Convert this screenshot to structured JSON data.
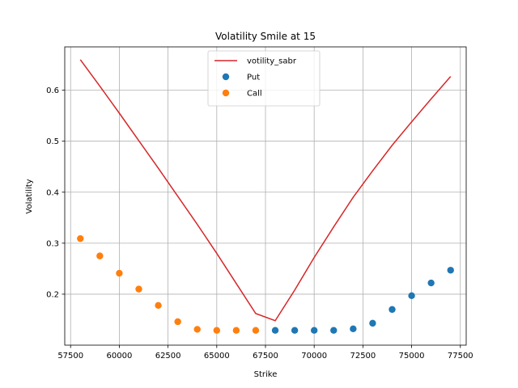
{
  "chart_data": {
    "type": "line",
    "title": "Volatility Smile at 15",
    "xlabel": "Strike",
    "ylabel": "Volatility",
    "xlim": [
      57200,
      77800
    ],
    "ylim": [
      0.1,
      0.685
    ],
    "xticks": [
      57500,
      60000,
      62500,
      65000,
      67500,
      70000,
      72500,
      75000,
      77500
    ],
    "yticks": [
      0.2,
      0.3,
      0.4,
      0.5,
      0.6
    ],
    "grid": true,
    "legend_placement": "upper-center",
    "series": [
      {
        "name": "votility_sabr",
        "kind": "line",
        "color": "#d62728",
        "x": [
          58000,
          59000,
          60000,
          61000,
          62000,
          63000,
          64000,
          65000,
          66000,
          67000,
          68000,
          69000,
          70000,
          71000,
          72000,
          73000,
          74000,
          75000,
          76000,
          77000
        ],
        "y": [
          0.66,
          0.608,
          0.555,
          0.501,
          0.447,
          0.392,
          0.337,
          0.28,
          0.221,
          0.162,
          0.148,
          0.208,
          0.272,
          0.332,
          0.39,
          0.442,
          0.492,
          0.538,
          0.583,
          0.627
        ]
      },
      {
        "name": "Put",
        "kind": "scatter",
        "color": "#1f77b4",
        "x": [
          68000,
          69000,
          70000,
          71000,
          72000,
          73000,
          74000,
          75000,
          76000,
          77000
        ],
        "y": [
          0.129,
          0.129,
          0.129,
          0.129,
          0.132,
          0.143,
          0.17,
          0.197,
          0.222,
          0.247
        ]
      },
      {
        "name": "Call",
        "kind": "scatter",
        "color": "#ff7f0e",
        "x": [
          58000,
          59000,
          60000,
          61000,
          62000,
          63000,
          64000,
          65000,
          66000,
          67000
        ],
        "y": [
          0.309,
          0.275,
          0.241,
          0.21,
          0.178,
          0.146,
          0.131,
          0.129,
          0.129,
          0.129
        ]
      }
    ]
  }
}
